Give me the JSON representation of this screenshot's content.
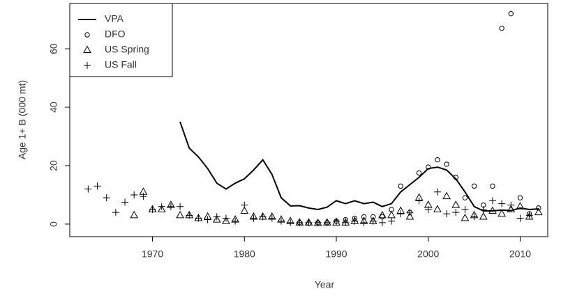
{
  "chart_data": {
    "type": "line",
    "xlabel": "Year",
    "ylabel": "Age 1+ B (000 mt)",
    "x": [
      1963,
      1964,
      1965,
      1966,
      1967,
      1968,
      1969,
      1970,
      1971,
      1972,
      1973,
      1974,
      1975,
      1976,
      1977,
      1978,
      1979,
      1980,
      1981,
      1982,
      1983,
      1984,
      1985,
      1986,
      1987,
      1988,
      1989,
      1990,
      1991,
      1992,
      1993,
      1994,
      1995,
      1996,
      1997,
      1998,
      1999,
      2000,
      2001,
      2002,
      2003,
      2004,
      2005,
      2006,
      2007,
      2008,
      2009,
      2010,
      2011,
      2012
    ],
    "xlim": [
      1961,
      2013
    ],
    "xticks": [
      1970,
      1980,
      1990,
      2000,
      2010
    ],
    "ylim": [
      -4.3,
      75.5
    ],
    "yticks": [
      0,
      20,
      40,
      60
    ],
    "legend": "top-left",
    "series": [
      {
        "name": "VPA",
        "color": "#000000",
        "marker": "line",
        "values": [
          null,
          null,
          null,
          null,
          null,
          null,
          null,
          null,
          null,
          null,
          35,
          26,
          23,
          19,
          14,
          12,
          14,
          15.5,
          18.5,
          22,
          17,
          9,
          6.2,
          6.3,
          5.5,
          5,
          5.8,
          8,
          7,
          8,
          7,
          7.5,
          6,
          7,
          11,
          13.5,
          16,
          19,
          19.5,
          18.5,
          15.5,
          11,
          6,
          4.5,
          4.5,
          4.8,
          4.6,
          5.5,
          5,
          5.2
        ]
      },
      {
        "name": "DFO",
        "color": "#000000",
        "marker": "circle",
        "values": [
          null,
          null,
          null,
          null,
          null,
          null,
          null,
          null,
          null,
          null,
          null,
          null,
          null,
          null,
          null,
          null,
          null,
          null,
          null,
          null,
          null,
          null,
          null,
          0.5,
          0.3,
          0.5,
          0.5,
          1,
          1.5,
          2,
          2.5,
          2.5,
          2.5,
          5,
          13,
          4,
          17.5,
          19.5,
          22,
          20.5,
          16,
          9,
          13,
          6.5,
          13,
          67,
          72,
          9,
          3.5,
          5.5
        ]
      },
      {
        "name": "US Spring",
        "color": "#000000",
        "marker": "triangle",
        "values": [
          null,
          null,
          null,
          null,
          null,
          3,
          11,
          5,
          5,
          6.5,
          3,
          3,
          2,
          2.5,
          1.5,
          1,
          1.5,
          4.5,
          2.5,
          2.5,
          2.5,
          1.5,
          1,
          0.5,
          0.5,
          0.3,
          0.5,
          0.5,
          0.5,
          1,
          1,
          1,
          3,
          3,
          4.5,
          2.5,
          9,
          6.5,
          5,
          9.5,
          6.5,
          2,
          3,
          2.5,
          4.5,
          3.5,
          5,
          6,
          2.5,
          4
        ]
      },
      {
        "name": "US Fall",
        "color": "#000000",
        "marker": "plus",
        "values": [
          12,
          13,
          9,
          4,
          7.5,
          10,
          9.5,
          5,
          6,
          6,
          6,
          3,
          2,
          1.5,
          2.5,
          2,
          1,
          6.5,
          2,
          2.5,
          2,
          1,
          0.5,
          0.5,
          0.5,
          0.5,
          0.5,
          1,
          0.5,
          1,
          0.5,
          1,
          0.5,
          1,
          3.5,
          4,
          8,
          5,
          11,
          3.5,
          4,
          5,
          2.5,
          5,
          8,
          7,
          6.5,
          2,
          3,
          null
        ]
      }
    ]
  }
}
